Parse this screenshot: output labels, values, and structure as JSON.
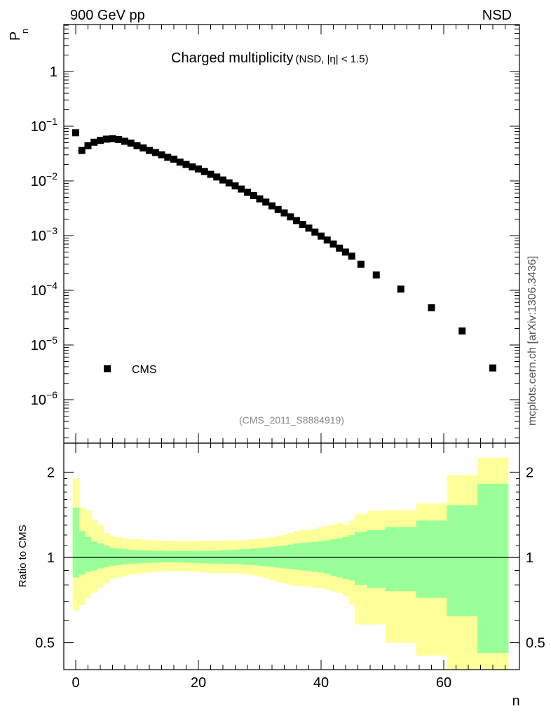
{
  "header": {
    "left": "900 GeV pp",
    "right": "NSD"
  },
  "side_label": "mcplots.cern.ch [arXiv:1306.3436]",
  "chart_data": [
    {
      "type": "scatter",
      "title": "Charged multiplicity",
      "title_suffix": "(NSD, |η| < 1.5)",
      "ylabel": "P",
      "ylabel_sub": "n",
      "yscale": "log",
      "ylim": [
        1.5e-07,
        7
      ],
      "xlim": [
        -2,
        71
      ],
      "yticks": [
        {
          "v": 1e-06,
          "base": "10",
          "exp": "−6"
        },
        {
          "v": 1e-05,
          "base": "10",
          "exp": "−5"
        },
        {
          "v": 0.0001,
          "base": "10",
          "exp": "−4"
        },
        {
          "v": 0.001,
          "base": "10",
          "exp": "−3"
        },
        {
          "v": 0.01,
          "base": "10",
          "exp": "−2"
        },
        {
          "v": 0.1,
          "base": "10",
          "exp": "−1"
        },
        {
          "v": 1,
          "base": "1",
          "exp": ""
        }
      ],
      "annotation": "(CMS_2011_S8884919)",
      "legend": {
        "position": "bottom-left",
        "entries": [
          "CMS"
        ]
      },
      "series": [
        {
          "name": "CMS",
          "color": "#000000",
          "x": [
            0,
            1,
            2,
            3,
            4,
            5,
            6,
            7,
            8,
            9,
            10,
            11,
            12,
            13,
            14,
            15,
            16,
            17,
            18,
            19,
            20,
            21,
            22,
            23,
            24,
            25,
            26,
            27,
            28,
            29,
            30,
            31,
            32,
            33,
            34,
            35,
            36,
            37,
            38,
            39,
            40,
            41,
            42,
            43,
            44,
            45,
            46.5,
            49,
            53,
            58,
            63,
            68
          ],
          "y": [
            0.076,
            0.036,
            0.044,
            0.051,
            0.055,
            0.058,
            0.059,
            0.057,
            0.053,
            0.049,
            0.044,
            0.04,
            0.036,
            0.033,
            0.03,
            0.027,
            0.025,
            0.022,
            0.02,
            0.018,
            0.0165,
            0.0148,
            0.0132,
            0.0118,
            0.0104,
            0.0092,
            0.0081,
            0.0071,
            0.0062,
            0.0054,
            0.0047,
            0.0041,
            0.0035,
            0.003,
            0.0026,
            0.0022,
            0.00188,
            0.0016,
            0.00137,
            0.00116,
            0.00098,
            0.00083,
            0.0007,
            0.00059,
            0.0005,
            0.00042,
            0.0003,
            0.00019,
            0.000105,
            4.8e-05,
            1.8e-05,
            3.8e-06
          ]
        }
      ]
    },
    {
      "type": "area",
      "ylabel": "Ratio to CMS",
      "xlabel": "n",
      "xlim": [
        -2,
        71
      ],
      "ylim": [
        0.35,
        2.3
      ],
      "xticks": [
        0,
        20,
        40,
        60
      ],
      "yticks": [
        0.5,
        1,
        2
      ],
      "reference": 1,
      "bands": [
        {
          "name": "outer",
          "color": "#ffff99",
          "edges": [
            -0.5,
            0.5,
            1.5,
            2.5,
            3.5,
            4.5,
            5.5,
            6.5,
            7.5,
            8.5,
            9.5,
            10.5,
            11.5,
            12.5,
            13.5,
            14.5,
            15.5,
            16.5,
            17.5,
            18.5,
            19.5,
            20.5,
            21.5,
            22.5,
            23.5,
            24.5,
            25.5,
            26.5,
            27.5,
            28.5,
            29.5,
            30.5,
            31.5,
            32.5,
            33.5,
            34.5,
            35.5,
            36.5,
            37.5,
            38.5,
            39.5,
            40.5,
            41.5,
            42.5,
            43.5,
            44.5,
            45.5,
            47.5,
            50.5,
            55.5,
            60.5,
            65.5,
            70.5
          ],
          "lo": [
            0.65,
            0.68,
            0.72,
            0.75,
            0.78,
            0.81,
            0.84,
            0.85,
            0.86,
            0.87,
            0.875,
            0.88,
            0.885,
            0.89,
            0.89,
            0.895,
            0.895,
            0.895,
            0.895,
            0.89,
            0.89,
            0.885,
            0.88,
            0.88,
            0.88,
            0.88,
            0.88,
            0.875,
            0.87,
            0.865,
            0.855,
            0.845,
            0.83,
            0.82,
            0.81,
            0.8,
            0.79,
            0.79,
            0.79,
            0.78,
            0.78,
            0.77,
            0.76,
            0.75,
            0.73,
            0.68,
            0.58,
            0.58,
            0.5,
            0.45,
            0.3,
            0.3,
            0.3
          ],
          "hi": [
            1.9,
            1.5,
            1.46,
            1.36,
            1.3,
            1.22,
            1.19,
            1.18,
            1.17,
            1.16,
            1.16,
            1.155,
            1.15,
            1.15,
            1.145,
            1.145,
            1.14,
            1.14,
            1.14,
            1.14,
            1.14,
            1.145,
            1.145,
            1.145,
            1.145,
            1.15,
            1.15,
            1.15,
            1.155,
            1.16,
            1.165,
            1.17,
            1.18,
            1.19,
            1.2,
            1.22,
            1.24,
            1.25,
            1.25,
            1.26,
            1.28,
            1.29,
            1.3,
            1.32,
            1.3,
            1.35,
            1.42,
            1.46,
            1.47,
            1.55,
            1.95,
            2.25,
            2.25
          ]
        },
        {
          "name": "inner",
          "color": "#99ff99",
          "edges": [
            -0.5,
            0.5,
            1.5,
            2.5,
            3.5,
            4.5,
            5.5,
            6.5,
            7.5,
            8.5,
            9.5,
            10.5,
            11.5,
            12.5,
            13.5,
            14.5,
            15.5,
            16.5,
            17.5,
            18.5,
            19.5,
            20.5,
            21.5,
            22.5,
            23.5,
            24.5,
            25.5,
            26.5,
            27.5,
            28.5,
            29.5,
            30.5,
            31.5,
            32.5,
            33.5,
            34.5,
            35.5,
            36.5,
            37.5,
            38.5,
            39.5,
            40.5,
            41.5,
            42.5,
            43.5,
            44.5,
            45.5,
            47.5,
            50.5,
            55.5,
            60.5,
            65.5,
            70.5
          ],
          "lo": [
            0.85,
            0.87,
            0.89,
            0.9,
            0.915,
            0.925,
            0.935,
            0.94,
            0.945,
            0.95,
            0.952,
            0.955,
            0.957,
            0.958,
            0.96,
            0.96,
            0.96,
            0.96,
            0.958,
            0.957,
            0.955,
            0.953,
            0.952,
            0.951,
            0.95,
            0.95,
            0.948,
            0.945,
            0.942,
            0.94,
            0.935,
            0.93,
            0.925,
            0.92,
            0.915,
            0.91,
            0.905,
            0.9,
            0.895,
            0.89,
            0.885,
            0.875,
            0.86,
            0.85,
            0.84,
            0.83,
            0.8,
            0.78,
            0.76,
            0.72,
            0.62,
            0.46,
            0.46
          ],
          "hi": [
            1.5,
            1.24,
            1.18,
            1.14,
            1.12,
            1.1,
            1.08,
            1.075,
            1.07,
            1.065,
            1.06,
            1.06,
            1.057,
            1.055,
            1.055,
            1.052,
            1.052,
            1.052,
            1.052,
            1.052,
            1.052,
            1.055,
            1.055,
            1.057,
            1.06,
            1.062,
            1.065,
            1.068,
            1.07,
            1.075,
            1.08,
            1.085,
            1.09,
            1.095,
            1.1,
            1.11,
            1.12,
            1.125,
            1.13,
            1.135,
            1.14,
            1.15,
            1.16,
            1.17,
            1.18,
            1.2,
            1.23,
            1.25,
            1.28,
            1.35,
            1.53,
            1.82,
            1.82
          ]
        }
      ]
    }
  ]
}
